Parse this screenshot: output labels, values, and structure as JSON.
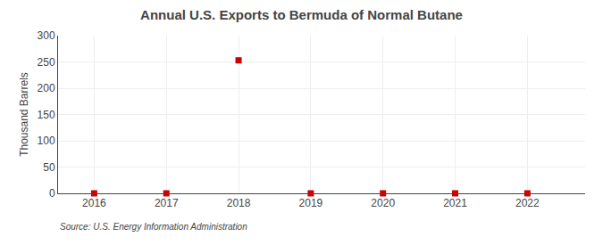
{
  "chart_data": {
    "type": "scatter",
    "title": "Annual U.S. Exports to Bermuda of Normal Butane",
    "ylabel": "Thousand Barrels",
    "source": "Source: U.S. Energy Information Administration",
    "x": [
      2016,
      2017,
      2018,
      2019,
      2020,
      2021,
      2022
    ],
    "values": [
      0,
      0,
      253,
      0,
      0,
      0,
      0
    ],
    "color": "#cc0000",
    "marker": "square",
    "xlim": [
      2015.5,
      2022.8
    ],
    "xticks": [
      2016,
      2017,
      2018,
      2019,
      2020,
      2021,
      2022
    ],
    "ylim": [
      0,
      300
    ],
    "yticks": [
      0,
      50,
      100,
      150,
      200,
      250,
      300
    ],
    "grid": true
  }
}
